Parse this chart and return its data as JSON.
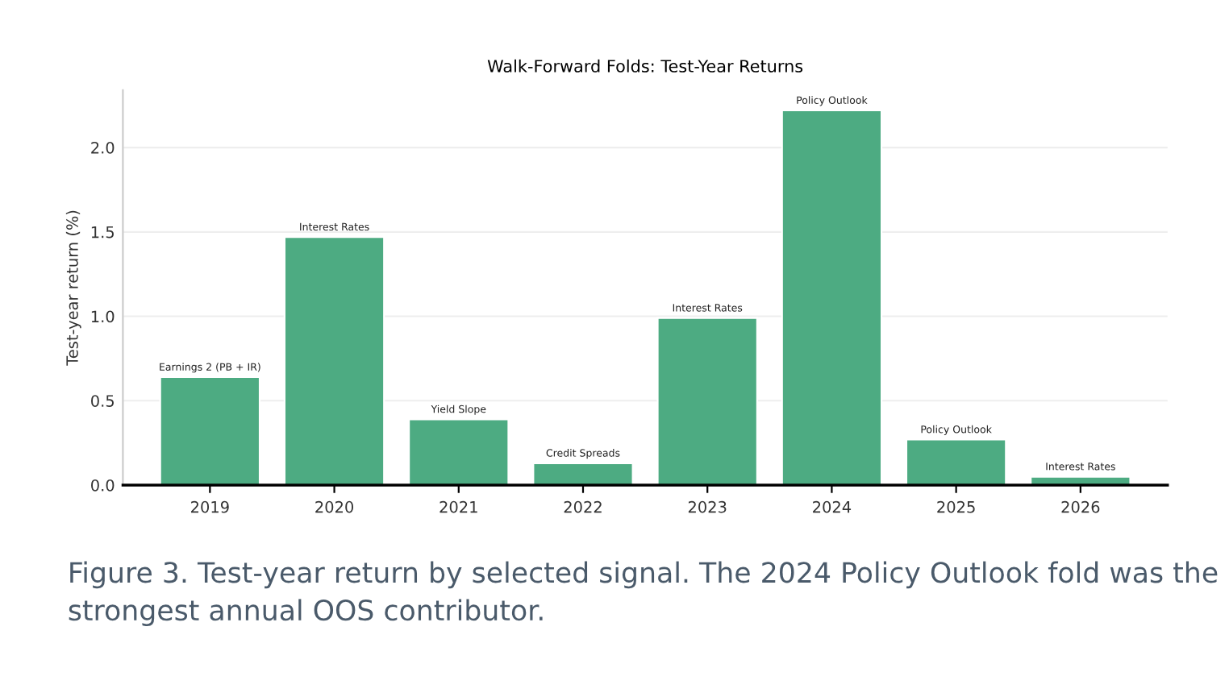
{
  "chart_data": {
    "type": "bar",
    "title": "Walk-Forward Folds: Test-Year Returns",
    "ylabel": "Test-year return (%)",
    "categories": [
      "2019",
      "2020",
      "2021",
      "2022",
      "2023",
      "2024",
      "2025",
      "2026"
    ],
    "values": [
      0.64,
      1.47,
      0.39,
      0.13,
      0.99,
      2.22,
      0.27,
      0.05
    ],
    "value_labels": [
      "Earnings 2 (PB + IR)",
      "Interest Rates",
      "Yield Slope",
      "Credit Spreads",
      "Interest Rates",
      "Policy Outlook",
      "Policy Outlook",
      "Interest Rates"
    ],
    "color": "#4dab82",
    "ylim": [
      0,
      2.34
    ],
    "yticks": [
      {
        "value": 0,
        "label": "0.0"
      },
      {
        "value": 0.5,
        "label": "0.5"
      },
      {
        "value": 1,
        "label": "1.0"
      },
      {
        "value": 1.5,
        "label": "1.5"
      },
      {
        "value": 2,
        "label": "2.0"
      }
    ],
    "grid": "y",
    "annotations": [
      "Figure 3. Test-year return by selected signal. The 2024 Policy Outlook fold was the strongest annual OOS contributor."
    ]
  }
}
